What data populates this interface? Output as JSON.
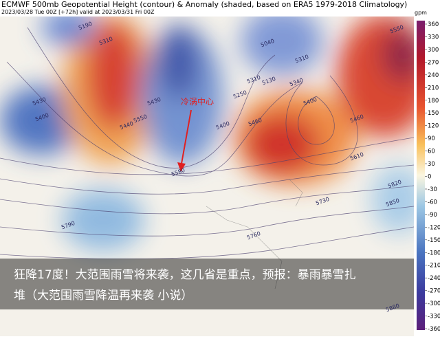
{
  "header": {
    "title": "ECMWF 500mb Geopotential Height (contour) & Anomaly (shaded, based on ERA5 1979-2018 Climatology)",
    "subtitle": "2023/03/28 Tue 00Z [+72h] valid at 2023/03/31 Fri 00Z"
  },
  "colorbar": {
    "unit": "gpm",
    "ticks": [
      360,
      330,
      300,
      270,
      240,
      210,
      180,
      150,
      120,
      90,
      60,
      30,
      0,
      -30,
      -60,
      -90,
      -120,
      -150,
      -180,
      -210,
      -240,
      -270,
      -300,
      -330,
      -360
    ]
  },
  "contour_labels": [
    "5190",
    "5310",
    "5430",
    "5400",
    "5440",
    "5550",
    "5430",
    "5040",
    "5130",
    "5250",
    "5310",
    "5340",
    "5400",
    "5460",
    "5400",
    "5460",
    "5310",
    "5550",
    "5580",
    "5610",
    "5820",
    "5850",
    "5730",
    "5790",
    "5760",
    "5880"
  ],
  "annotation": "冷涡中心",
  "caption": {
    "line1": "狂降17度！大范围雨雪将来袭，这几省是重点，预报：暴雨暴雪扎",
    "line2": "堆（大范围雨雪降温再来袭  小说）"
  }
}
